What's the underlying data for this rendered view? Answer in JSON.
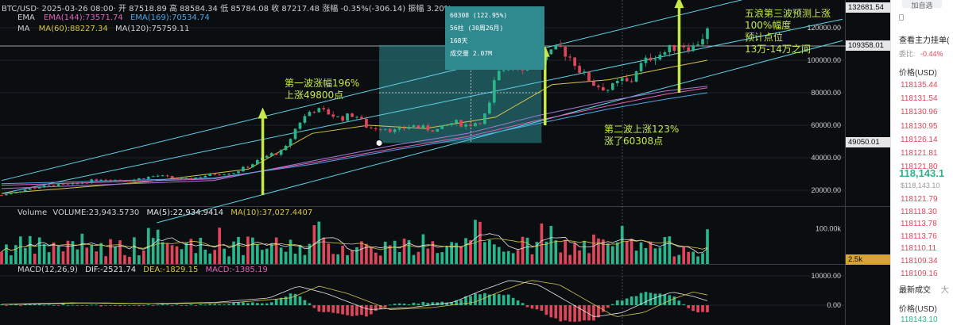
{
  "header": {
    "symbol_line": "BTC/USD· 2025-03-26 08:00· 开 87518.89 高 88584.34 低 85784.08 收 87217.48 涨幅 -0.35%(-306.14) 振幅 3.20%",
    "ema_label": "EMA",
    "ema144": "EMA(144):73571.74",
    "ema169": "EMA(169):70534.74",
    "ma_label": "MA",
    "ma60": "MA(60):88227.34",
    "ma120": "MA(120):75759.11"
  },
  "tooltip": {
    "line1": "60308 (122.95%)",
    "line2": "56柱 (30周26月)",
    "line3": "168天",
    "line4": "成交量 2.07M"
  },
  "annotations": {
    "wave1": [
      "第一波涨幅196%",
      "上涨49800点"
    ],
    "wave2": [
      "第二波上涨123%",
      "涨了60308点"
    ],
    "wave3": [
      "五浪第三波预测上涨",
      "100%幅度",
      "预计点位",
      "13万-14万之间"
    ]
  },
  "price_axis": {
    "ticks": [
      "120000.00",
      "100000.00",
      "80000.00",
      "60000.00",
      "40000.00",
      "20000.00"
    ],
    "tag_top": "132681.54",
    "tag_mid": "109358.01",
    "tag_low": "49050.01"
  },
  "volume_panel": {
    "label": "Volume",
    "volume": "VOLUME:23,943.5730",
    "ma5": "MA(5):22,934.9414",
    "ma10": "MA(10):37,027.4407",
    "tick": "100.00k",
    "tag": "2.5k"
  },
  "macd_panel": {
    "label": "MACD(12,26,9)",
    "dif": "DIF:-2521.74",
    "dea": "DEA:-1829.15",
    "macd": "MACD:-1385.19",
    "ticks": [
      "10000.00",
      "0.00"
    ]
  },
  "sidebar": {
    "top_button": "加自选",
    "main_order": "查看主力挂单(",
    "ratio_label": "委比:",
    "ratio_value": "-0.44%",
    "price_header": "价格(USD)",
    "asks": [
      "118135.44",
      "118131.54",
      "118130.96",
      "118130.95",
      "118126.14",
      "118121.81",
      "118121.80"
    ],
    "last_price": "118,143.1",
    "last_price_sub": "$118,143.10",
    "bids": [
      "118121.79",
      "118118.30",
      "118113.78",
      "118113.76",
      "118110.11",
      "118109.34",
      "118109.16"
    ],
    "trades_tab": "最新成交",
    "trades_tab2": "大",
    "trades_price_header": "价格(USD)",
    "trades_first": "118143.10"
  },
  "colors": {
    "up": "#2bb58a",
    "down": "#e0455a",
    "channel": "#5fd3e6",
    "annotation": "#c7e84a",
    "tooltip_bg": "#2e8a8f"
  },
  "chart_data": {
    "type": "candlestick",
    "title": "BTC/USD",
    "ylim": [
      0,
      140000
    ],
    "y_ticks": [
      20000,
      40000,
      60000,
      80000,
      100000,
      120000
    ],
    "price_path": [
      [
        0,
        17000
      ],
      [
        4,
        21000
      ],
      [
        7,
        23000
      ],
      [
        10,
        23500
      ],
      [
        14,
        27000
      ],
      [
        18,
        26000
      ],
      [
        22,
        29000
      ],
      [
        26,
        26500
      ],
      [
        30,
        30000
      ],
      [
        33,
        31000
      ],
      [
        35,
        35000
      ],
      [
        38,
        42000
      ],
      [
        40,
        44000
      ],
      [
        42,
        61000
      ],
      [
        44,
        70000
      ],
      [
        46,
        68000
      ],
      [
        48,
        64000
      ],
      [
        50,
        67000
      ],
      [
        52,
        58000
      ],
      [
        54,
        59000
      ],
      [
        56,
        56000
      ],
      [
        58,
        60000
      ],
      [
        60,
        58000
      ],
      [
        62,
        57000
      ],
      [
        64,
        62000
      ],
      [
        66,
        60000
      ],
      [
        68,
        63000
      ],
      [
        69,
        70000
      ],
      [
        70,
        90000
      ],
      [
        72,
        98000
      ],
      [
        74,
        96000
      ],
      [
        76,
        100000
      ],
      [
        78,
        104000
      ],
      [
        79,
        108000
      ],
      [
        81,
        100000
      ],
      [
        82,
        93000
      ],
      [
        84,
        85000
      ],
      [
        86,
        82000
      ],
      [
        88,
        88000
      ],
      [
        89,
        85000
      ],
      [
        90,
        95000
      ],
      [
        92,
        102000
      ],
      [
        94,
        105000
      ],
      [
        96,
        110000
      ],
      [
        98,
        108000
      ],
      [
        100,
        118000
      ]
    ],
    "ma_lines": [
      {
        "name": "MA(60)",
        "color": "#d6c34a",
        "points": [
          [
            0,
            18000
          ],
          [
            20,
            25000
          ],
          [
            35,
            33000
          ],
          [
            44,
            55000
          ],
          [
            52,
            60000
          ],
          [
            60,
            58000
          ],
          [
            70,
            65000
          ],
          [
            78,
            85000
          ],
          [
            86,
            88000
          ],
          [
            94,
            95000
          ],
          [
            100,
            100000
          ]
        ]
      },
      {
        "name": "MA(120)",
        "color": "#a77bd8",
        "points": [
          [
            0,
            21000
          ],
          [
            30,
            26000
          ],
          [
            44,
            38000
          ],
          [
            56,
            48000
          ],
          [
            66,
            55000
          ],
          [
            76,
            66000
          ],
          [
            86,
            75000
          ],
          [
            94,
            81000
          ],
          [
            100,
            84000
          ]
        ]
      },
      {
        "name": "EMA(144)",
        "color": "#e063b8",
        "points": [
          [
            0,
            23000
          ],
          [
            30,
            27000
          ],
          [
            44,
            37000
          ],
          [
            56,
            46000
          ],
          [
            66,
            53000
          ],
          [
            76,
            63000
          ],
          [
            86,
            72000
          ],
          [
            94,
            79000
          ],
          [
            100,
            83000
          ]
        ]
      },
      {
        "name": "EMA(169)",
        "color": "#4fa4e8",
        "points": [
          [
            0,
            24000
          ],
          [
            30,
            27500
          ],
          [
            44,
            36000
          ],
          [
            56,
            45000
          ],
          [
            66,
            52000
          ],
          [
            76,
            61000
          ],
          [
            86,
            70000
          ],
          [
            94,
            76000
          ],
          [
            100,
            80000
          ]
        ]
      }
    ],
    "channel": {
      "upper": [
        [
          0,
          26000
        ],
        [
          100,
          132000
        ]
      ],
      "middle": [
        [
          0,
          18000
        ],
        [
          100,
          108000
        ]
      ],
      "lower": [
        [
          22,
          0
        ],
        [
          100,
          90000
        ]
      ]
    },
    "markers": [
      {
        "x": 53.5,
        "y": 49050
      },
      {
        "x": 76.5,
        "y": 109358
      }
    ],
    "measure_box": {
      "x0": 53.5,
      "x1": 76.5,
      "y0": 49050,
      "y1": 109358
    },
    "wave_arrows": [
      {
        "x": 37,
        "from": 17000,
        "to": 70000
      },
      {
        "x": 77,
        "from": 60000,
        "to": 108000
      },
      {
        "x": 96,
        "from": 80000,
        "to": 138000
      }
    ],
    "volume": {
      "ylim": [
        0,
        160000
      ],
      "tick": 100000
    },
    "macd": {
      "ylim": [
        -6000,
        12000
      ],
      "ticks": [
        0,
        10000
      ]
    }
  }
}
